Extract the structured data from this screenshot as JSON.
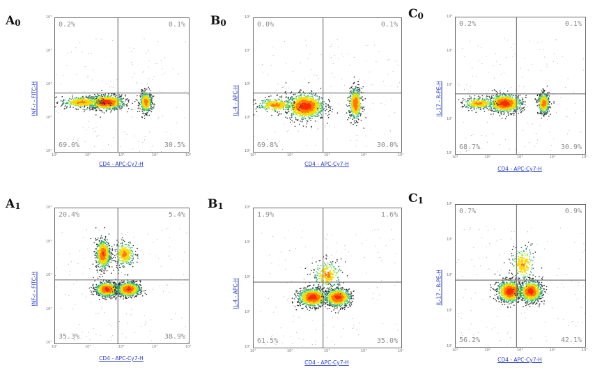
{
  "chart_data": [
    {
      "id": "A0",
      "type": "scatter",
      "panel_letter": "A",
      "panel_sub": "0",
      "xlabel": "CD4 - APC-Cy7-H",
      "ylabel": "INF-r - FITC-H",
      "axis_scale": "log",
      "xlim": [
        10,
        100000
      ],
      "ylim": [
        10,
        100000
      ],
      "tick_labels": [
        "10¹",
        "10²",
        "10³",
        "10⁴",
        "10⁵"
      ],
      "quadrants": {
        "upper_left": "0.2%",
        "upper_right": "0.1%",
        "lower_left": "69.0%",
        "lower_right": "30.5%"
      },
      "gate_x_fraction": 0.47,
      "gate_y_fraction": 0.44,
      "populations": [
        {
          "cx": 0.38,
          "cy": 0.37,
          "rx": 0.13,
          "ry": 0.05,
          "weight": 1.0
        },
        {
          "cx": 0.68,
          "cy": 0.37,
          "rx": 0.04,
          "ry": 0.07,
          "weight": 0.55
        },
        {
          "cx": 0.2,
          "cy": 0.37,
          "rx": 0.14,
          "ry": 0.04,
          "weight": 0.35
        }
      ]
    },
    {
      "id": "B0",
      "type": "scatter",
      "panel_letter": "B",
      "panel_sub": "0",
      "xlabel": "CD4 - APC-Cy7-H",
      "ylabel": "IL-4 - APC-H",
      "axis_scale": "log",
      "xlim": [
        10,
        100000
      ],
      "ylim": [
        10,
        100000
      ],
      "tick_labels": [
        "10¹",
        "10²",
        "10³",
        "10⁴",
        "10⁵"
      ],
      "quadrants": {
        "upper_left": "0.0%",
        "upper_right": "0.1%",
        "lower_left": "69.8%",
        "lower_right": "30.0%"
      },
      "gate_x_fraction": 0.47,
      "gate_y_fraction": 0.44,
      "populations": [
        {
          "cx": 0.35,
          "cy": 0.34,
          "rx": 0.12,
          "ry": 0.09,
          "weight": 1.0
        },
        {
          "cx": 0.69,
          "cy": 0.36,
          "rx": 0.04,
          "ry": 0.11,
          "weight": 0.6
        },
        {
          "cx": 0.15,
          "cy": 0.35,
          "rx": 0.12,
          "ry": 0.05,
          "weight": 0.3
        }
      ]
    },
    {
      "id": "C0",
      "type": "scatter",
      "panel_letter": "C",
      "panel_sub": "0",
      "xlabel": "CD4 - APC-Cy7-H",
      "ylabel": "IL-17 - R-PE-H",
      "axis_scale": "log",
      "xlim": [
        10,
        100000
      ],
      "ylim": [
        10,
        100000
      ],
      "tick_labels": [
        "10¹",
        "10²",
        "10³",
        "10⁴",
        "10⁵"
      ],
      "quadrants": {
        "upper_left": "0.2%",
        "upper_right": "0.1%",
        "lower_left": "68.7%",
        "lower_right": "30.9%"
      },
      "gate_x_fraction": 0.47,
      "gate_y_fraction": 0.44,
      "populations": [
        {
          "cx": 0.38,
          "cy": 0.37,
          "rx": 0.12,
          "ry": 0.06,
          "weight": 1.0
        },
        {
          "cx": 0.68,
          "cy": 0.37,
          "rx": 0.04,
          "ry": 0.07,
          "weight": 0.55
        },
        {
          "cx": 0.18,
          "cy": 0.37,
          "rx": 0.12,
          "ry": 0.04,
          "weight": 0.3
        }
      ]
    },
    {
      "id": "A1",
      "type": "scatter",
      "panel_letter": "A",
      "panel_sub": "1",
      "xlabel": "CD4 - APC-Cy7-H",
      "ylabel": "INF-r - FITC-H",
      "axis_scale": "log",
      "xlim": [
        10,
        100000
      ],
      "ylim": [
        10,
        100000
      ],
      "tick_labels": [
        "10¹",
        "10²",
        "10³",
        "10⁴",
        "10⁵"
      ],
      "quadrants": {
        "upper_left": "20.4%",
        "upper_right": "5.4%",
        "lower_left": "35.3%",
        "lower_right": "38.9%"
      },
      "gate_x_fraction": 0.47,
      "gate_y_fraction": 0.47,
      "populations": [
        {
          "cx": 0.39,
          "cy": 0.4,
          "rx": 0.08,
          "ry": 0.05,
          "weight": 0.9
        },
        {
          "cx": 0.55,
          "cy": 0.4,
          "rx": 0.08,
          "ry": 0.05,
          "weight": 0.9
        },
        {
          "cx": 0.36,
          "cy": 0.66,
          "rx": 0.05,
          "ry": 0.1,
          "weight": 0.75
        },
        {
          "cx": 0.52,
          "cy": 0.66,
          "rx": 0.07,
          "ry": 0.09,
          "weight": 0.3
        }
      ]
    },
    {
      "id": "B1",
      "type": "scatter",
      "panel_letter": "B",
      "panel_sub": "1",
      "xlabel": "CD4 - APC-Cy7-H",
      "ylabel": "IL-4 - APC-H",
      "axis_scale": "log",
      "xlim": [
        10,
        100000
      ],
      "ylim": [
        10,
        100000
      ],
      "tick_labels": [
        "10¹",
        "10²",
        "10³",
        "10⁴",
        "10⁵"
      ],
      "quadrants": {
        "upper_left": "1.9%",
        "upper_right": "1.6%",
        "lower_left": "61.5%",
        "lower_right": "35.0%"
      },
      "gate_x_fraction": 0.47,
      "gate_y_fraction": 0.47,
      "populations": [
        {
          "cx": 0.4,
          "cy": 0.36,
          "rx": 0.09,
          "ry": 0.06,
          "weight": 1.0
        },
        {
          "cx": 0.57,
          "cy": 0.36,
          "rx": 0.08,
          "ry": 0.06,
          "weight": 0.9
        },
        {
          "cx": 0.5,
          "cy": 0.52,
          "rx": 0.09,
          "ry": 0.1,
          "weight": 0.25
        }
      ]
    },
    {
      "id": "C1",
      "type": "scatter",
      "panel_letter": "C",
      "panel_sub": "1",
      "xlabel": "CD4 - APC-Cy7-H",
      "ylabel": "IL-17 - R-PE-H",
      "axis_scale": "log",
      "xlim": [
        10,
        100000
      ],
      "ylim": [
        10,
        100000
      ],
      "tick_labels": [
        "10¹",
        "10²",
        "10³",
        "10⁴",
        "10⁵"
      ],
      "quadrants": {
        "upper_left": "0.7%",
        "upper_right": "0.9%",
        "lower_left": "56.2%",
        "lower_right": "42.1%"
      },
      "gate_x_fraction": 0.47,
      "gate_y_fraction": 0.47,
      "populations": [
        {
          "cx": 0.42,
          "cy": 0.39,
          "rx": 0.09,
          "ry": 0.07,
          "weight": 1.0
        },
        {
          "cx": 0.58,
          "cy": 0.39,
          "rx": 0.08,
          "ry": 0.07,
          "weight": 0.9
        },
        {
          "cx": 0.52,
          "cy": 0.58,
          "rx": 0.09,
          "ry": 0.12,
          "weight": 0.2
        }
      ]
    }
  ]
}
